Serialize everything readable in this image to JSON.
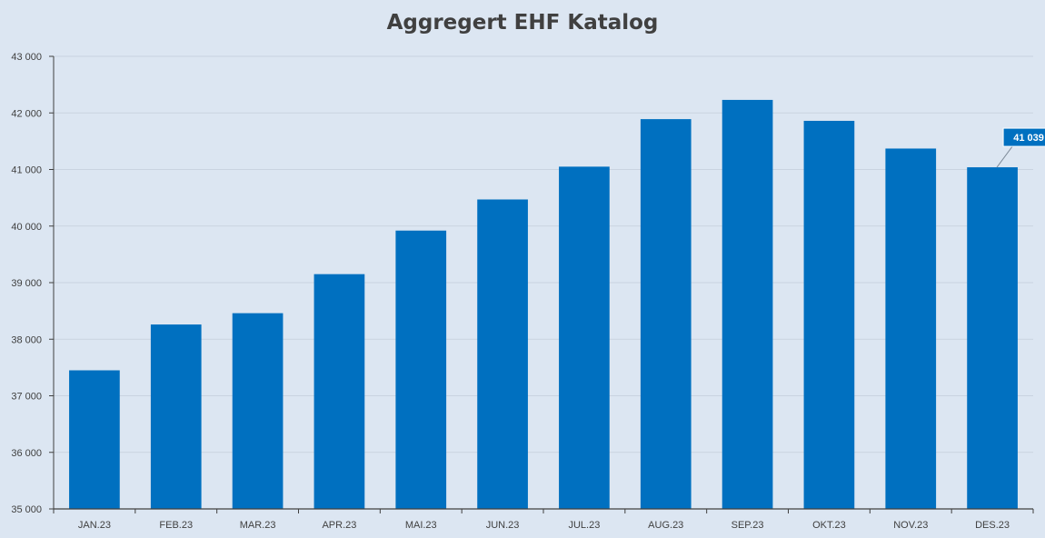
{
  "chart_data": {
    "type": "bar",
    "title": "Aggregert EHF Katalog",
    "xlabel": "",
    "ylabel": "",
    "categories": [
      "JAN.23",
      "FEB.23",
      "MAR.23",
      "APR.23",
      "MAI.23",
      "JUN.23",
      "JUL.23",
      "AUG.23",
      "SEP.23",
      "OKT.23",
      "NOV.23",
      "DES.23"
    ],
    "values": [
      37450,
      38260,
      38460,
      39150,
      39920,
      40470,
      41050,
      41890,
      42230,
      41860,
      41370,
      41039
    ],
    "ylim": [
      35000,
      43000
    ],
    "yticks": [
      35000,
      36000,
      37000,
      38000,
      39000,
      40000,
      41000,
      42000,
      43000
    ],
    "ytick_labels": [
      "35 000",
      "36 000",
      "37 000",
      "38 000",
      "39 000",
      "40 000",
      "41 000",
      "42 000",
      "43 000"
    ],
    "data_labels": [
      {
        "category": "DES.23",
        "text": "41 039"
      }
    ],
    "grid": true,
    "bar_color": "#0070c0"
  }
}
